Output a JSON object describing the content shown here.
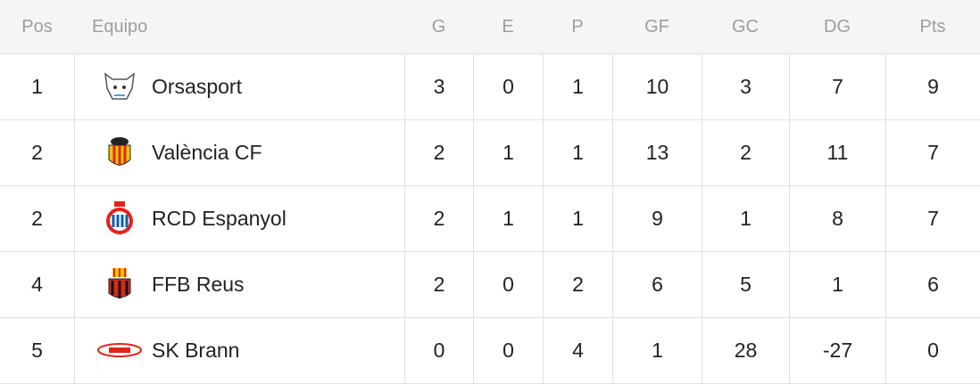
{
  "table": {
    "columns": [
      "Pos",
      "Equipo",
      "G",
      "E",
      "P",
      "GF",
      "GC",
      "DG",
      "Pts"
    ],
    "rows": [
      [
        1,
        "Orsasport",
        3,
        0,
        1,
        10,
        3,
        7,
        9
      ],
      [
        2,
        "València CF",
        2,
        1,
        1,
        13,
        2,
        11,
        7
      ],
      [
        2,
        "RCD Espanyol",
        2,
        1,
        1,
        9,
        1,
        8,
        7
      ],
      [
        4,
        "FFB Reus",
        2,
        0,
        2,
        6,
        5,
        1,
        6
      ],
      [
        5,
        "SK Brann",
        0,
        0,
        4,
        1,
        28,
        -27,
        0
      ]
    ]
  }
}
